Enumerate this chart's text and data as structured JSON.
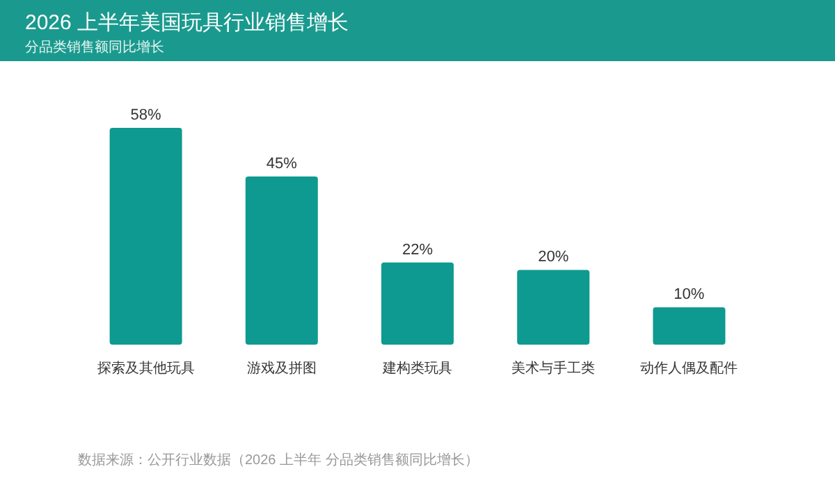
{
  "chart_data": {
    "type": "bar",
    "title": "2026 上半年美国玩具行业销售增长",
    "subtitle": "分品类销售额同比增长",
    "categories": [
      "探索及其他玩具",
      "游戏及拼图",
      "建构类玩具",
      "美术与手工类",
      "动作人偶及配件"
    ],
    "values": [
      58,
      45,
      22,
      20,
      10
    ],
    "value_labels": [
      "58%",
      "45%",
      "22%",
      "20%",
      "10%"
    ],
    "color": "#0e9a90",
    "annotations": [
      "数据来源：公开行业数据（2026 上半年 分品类销售额同比增长）"
    ]
  }
}
